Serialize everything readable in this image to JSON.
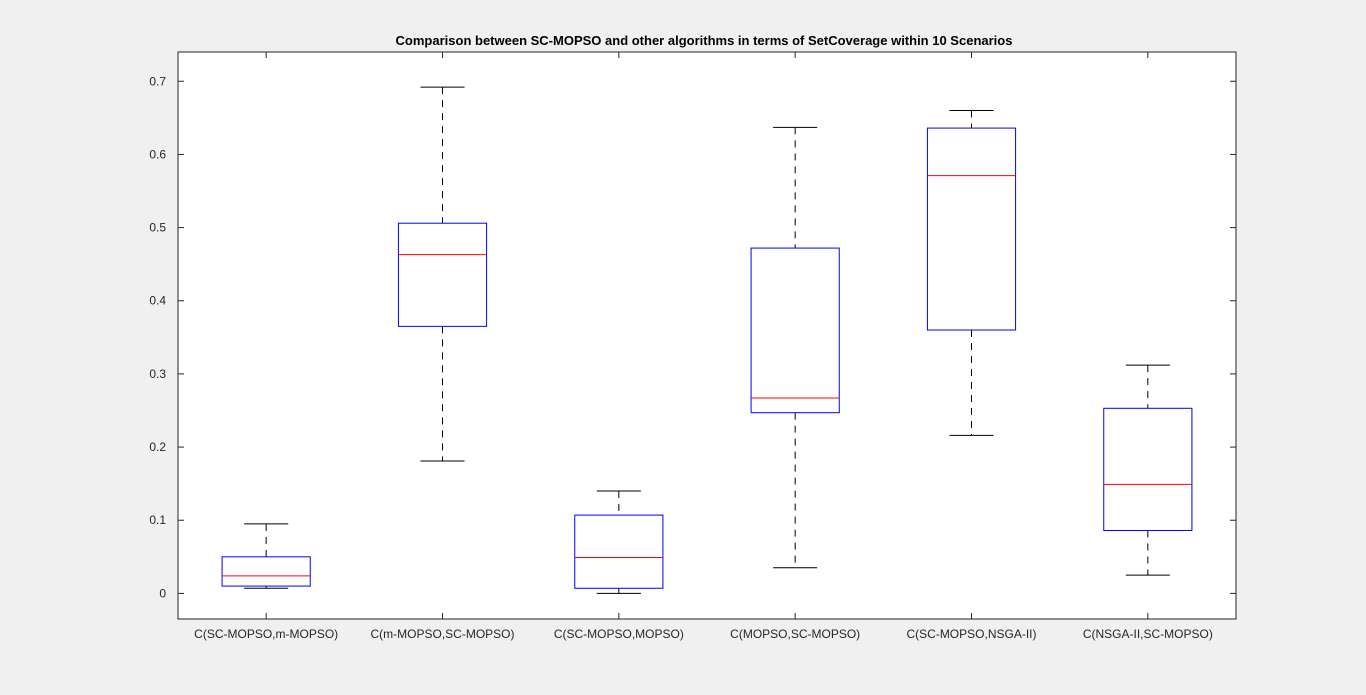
{
  "chart_data": {
    "type": "boxplot",
    "title": "Comparison between SC-MOPSO and other algorithms in terms of SetCoverage within 10 Scenarios",
    "xlabel": "",
    "ylabel": "",
    "ylim": [
      -0.035,
      0.74
    ],
    "yticks": [
      0,
      0.1,
      0.2,
      0.3,
      0.4,
      0.5,
      0.6,
      0.7
    ],
    "ytick_labels": [
      "0",
      "0.1",
      "0.2",
      "0.3",
      "0.4",
      "0.5",
      "0.6",
      "0.7"
    ],
    "grid": false,
    "legend": "none",
    "colors": {
      "box": "#0000ff",
      "median": "#ff0000",
      "whisker": "#000000",
      "axes": "#262626",
      "plot_bg": "#ffffff",
      "figure_bg": "#f0f0f0"
    },
    "categories": [
      "C(SC-MOPSO,m-MOPSO)",
      "C(m-MOPSO,SC-MOPSO)",
      "C(SC-MOPSO,MOPSO)",
      "C(MOPSO,SC-MOPSO)",
      "C(SC-MOPSO,NSGA-II)",
      "C(NSGA-II,SC-MOPSO)"
    ],
    "boxes": [
      {
        "whisker_low": 0.007,
        "q1": 0.01,
        "median": 0.024,
        "q3": 0.05,
        "whisker_high": 0.095
      },
      {
        "whisker_low": 0.181,
        "q1": 0.365,
        "median": 0.463,
        "q3": 0.506,
        "whisker_high": 0.692
      },
      {
        "whisker_low": 0.0,
        "q1": 0.007,
        "median": 0.049,
        "q3": 0.107,
        "whisker_high": 0.14
      },
      {
        "whisker_low": 0.035,
        "q1": 0.247,
        "median": 0.267,
        "q3": 0.472,
        "whisker_high": 0.637
      },
      {
        "whisker_low": 0.216,
        "q1": 0.36,
        "median": 0.571,
        "q3": 0.636,
        "whisker_high": 0.66
      },
      {
        "whisker_low": 0.025,
        "q1": 0.086,
        "median": 0.149,
        "q3": 0.253,
        "whisker_high": 0.312
      }
    ]
  }
}
